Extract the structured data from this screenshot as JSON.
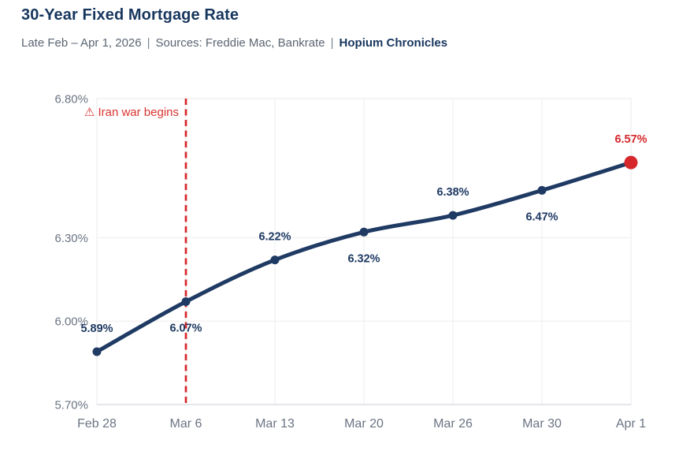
{
  "header": {
    "title": "30-Year Fixed Mortgage Rate",
    "subtitle_range": "Late Feb – Apr 1, 2026",
    "separator": "|",
    "subtitle_sources": "Sources: Freddie Mac, Bankrate",
    "subtitle_brand": "Hopium Chronicles"
  },
  "chart_data": {
    "type": "line",
    "title": "30-Year Fixed Mortgage Rate",
    "categories": [
      "Feb 28",
      "Mar 6",
      "Mar 13",
      "Mar 20",
      "Mar 26",
      "Mar 30",
      "Apr 1"
    ],
    "series": [
      {
        "name": "30-Year Fixed Mortgage Rate",
        "values": [
          5.89,
          6.07,
          6.22,
          6.32,
          6.38,
          6.47,
          6.57
        ]
      }
    ],
    "point_labels": [
      "5.89%",
      "6.07%",
      "6.22%",
      "6.32%",
      "6.38%",
      "6.47%",
      "6.57%"
    ],
    "point_label_positions": [
      "above",
      "below",
      "above",
      "below",
      "above",
      "below",
      "above"
    ],
    "xlabel": "",
    "ylabel": "",
    "ylim": [
      5.7,
      6.8
    ],
    "y_ticks": [
      {
        "value": 6.8,
        "label": "6.80%"
      },
      {
        "value": 6.3,
        "label": "6.30%"
      },
      {
        "value": 6.0,
        "label": "6.00%"
      },
      {
        "value": 5.7,
        "label": "5.70%"
      }
    ],
    "grid": {
      "horizontal_at": [
        6.3,
        6.0
      ],
      "vertical_at_every_category": true
    },
    "legend": "none",
    "highlight_last_point": true,
    "annotation": {
      "icon": "warning-triangle-icon",
      "icon_glyph": "⚠",
      "text": "Iran war begins",
      "x_category": "Mar 6",
      "marker": "vertical-dashed-line"
    },
    "colors": {
      "line": "#1f3a63",
      "point": "#1f3a63",
      "point_label": "#1f3a63",
      "last_point": "#d6272b",
      "last_point_label": "#d6272b",
      "event_line": "#d6272b",
      "annotation_text": "#d9342f",
      "grid": "#ededed",
      "plot_border": "#e9e9e9",
      "axis_line": "#d4d8dd",
      "axis_text": "#6b7483"
    }
  }
}
